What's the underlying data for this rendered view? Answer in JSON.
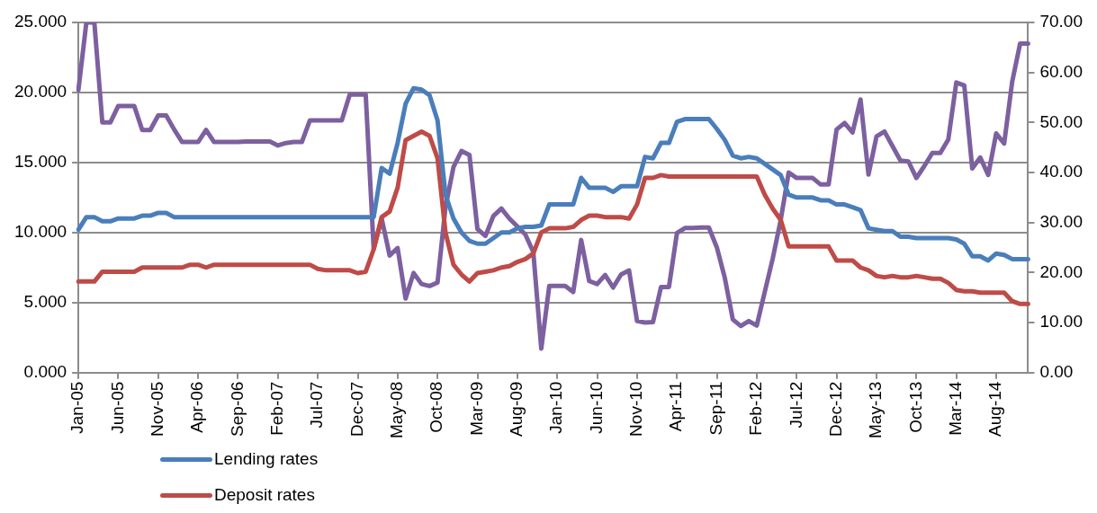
{
  "chart_data": {
    "type": "line",
    "categories": [
      "Jan-05",
      null,
      null,
      null,
      null,
      "Jun-05",
      null,
      null,
      null,
      null,
      "Nov-05",
      null,
      null,
      null,
      null,
      "Apr-06",
      null,
      null,
      null,
      null,
      "Sep-06",
      null,
      null,
      null,
      null,
      "Feb-07",
      null,
      null,
      null,
      null,
      "Jul-07",
      null,
      null,
      null,
      null,
      "Dec-07",
      null,
      null,
      null,
      null,
      "May-08",
      null,
      null,
      null,
      null,
      "Oct-08",
      null,
      null,
      null,
      null,
      "Mar-09",
      null,
      null,
      null,
      null,
      "Aug-09",
      null,
      null,
      null,
      null,
      "Jan-10",
      null,
      null,
      null,
      null,
      "Jun-10",
      null,
      null,
      null,
      null,
      "Nov-10",
      null,
      null,
      null,
      null,
      "Apr-11",
      null,
      null,
      null,
      null,
      "Sep-11",
      null,
      null,
      null,
      null,
      "Feb-12",
      null,
      null,
      null,
      null,
      "Jul-12",
      null,
      null,
      null,
      null,
      "Dec-12",
      null,
      null,
      null,
      null,
      "May-13",
      null,
      null,
      null,
      null,
      "Oct-13",
      null,
      null,
      null,
      null,
      "Mar-14",
      null,
      null,
      null,
      null,
      "Aug-14",
      null,
      null,
      null,
      null
    ],
    "series": [
      {
        "name": "Lending rates",
        "color": "#4a7ebb",
        "values": [
          10.2,
          11.1,
          11.1,
          10.8,
          10.8,
          11.0,
          11.0,
          11.0,
          11.2,
          11.2,
          11.4,
          11.4,
          11.1,
          11.1,
          11.1,
          11.1,
          11.1,
          11.1,
          11.1,
          11.1,
          11.1,
          11.1,
          11.1,
          11.1,
          11.1,
          11.1,
          11.1,
          11.1,
          11.1,
          11.1,
          11.1,
          11.1,
          11.1,
          11.1,
          11.1,
          11.1,
          11.1,
          11.1,
          14.6,
          14.2,
          16.4,
          19.2,
          20.3,
          20.2,
          19.8,
          18.0,
          12.7,
          11.0,
          10.0,
          9.4,
          9.2,
          9.2,
          9.6,
          10.0,
          10.0,
          10.3,
          10.4,
          10.4,
          10.5,
          12.0,
          12.0,
          12.0,
          12.0,
          13.9,
          13.2,
          13.2,
          13.2,
          12.9,
          13.3,
          13.3,
          13.3,
          15.4,
          15.3,
          16.4,
          16.4,
          17.9,
          18.1,
          18.1,
          18.1,
          18.1,
          17.4,
          16.6,
          15.5,
          15.3,
          15.4,
          15.3,
          14.9,
          14.5,
          14.1,
          12.7,
          12.5,
          12.5,
          12.5,
          12.3,
          12.3,
          12.0,
          12.0,
          11.8,
          11.6,
          10.3,
          10.2,
          10.1,
          10.1,
          9.7,
          9.7,
          9.6,
          9.6,
          9.6,
          9.6,
          9.6,
          9.5,
          9.2,
          8.3,
          8.3,
          8.0,
          8.5,
          8.4,
          8.1,
          8.1,
          8.1
        ]
      },
      {
        "name": "Deposit rates",
        "color": "#be4b48",
        "values": [
          6.5,
          6.5,
          6.5,
          7.2,
          7.2,
          7.2,
          7.2,
          7.2,
          7.5,
          7.5,
          7.5,
          7.5,
          7.5,
          7.5,
          7.7,
          7.7,
          7.5,
          7.7,
          7.7,
          7.7,
          7.7,
          7.7,
          7.7,
          7.7,
          7.7,
          7.7,
          7.7,
          7.7,
          7.7,
          7.7,
          7.4,
          7.3,
          7.3,
          7.3,
          7.3,
          7.1,
          7.2,
          8.8,
          11.1,
          11.5,
          13.2,
          16.6,
          16.9,
          17.2,
          16.9,
          15.3,
          10.0,
          7.7,
          7.0,
          6.5,
          7.1,
          7.2,
          7.3,
          7.5,
          7.6,
          7.9,
          8.1,
          8.5,
          10.0,
          10.3,
          10.3,
          10.3,
          10.4,
          10.9,
          11.2,
          11.2,
          11.1,
          11.1,
          11.1,
          11.0,
          12.0,
          13.9,
          13.9,
          14.1,
          14.0,
          14.0,
          14.0,
          14.0,
          14.0,
          14.0,
          14.0,
          14.0,
          14.0,
          14.0,
          14.0,
          14.0,
          12.7,
          11.7,
          10.9,
          9.0,
          9.0,
          9.0,
          9.0,
          9.0,
          9.0,
          8.0,
          8.0,
          8.0,
          7.5,
          7.3,
          6.9,
          6.8,
          6.9,
          6.8,
          6.8,
          6.9,
          6.8,
          6.7,
          6.7,
          6.4,
          5.9,
          5.8,
          5.8,
          5.7,
          5.7,
          5.7,
          5.7,
          5.1,
          4.9,
          4.9
        ]
      },
      {
        "color": "#7d60a0",
        "axis": "y2",
        "values": [
          56.5,
          70,
          70,
          50.0,
          50.0,
          53.3,
          53.3,
          53.3,
          48.5,
          48.5,
          51.4,
          51.4,
          48.6,
          46.1,
          46.1,
          46.1,
          48.5,
          46.1,
          46.1,
          46.1,
          46.1,
          46.2,
          46.2,
          46.2,
          46.2,
          45.4,
          45.9,
          46.1,
          46.1,
          50.4,
          50.4,
          50.4,
          50.4,
          50.4,
          55.6,
          55.6,
          55.6,
          24.7,
          30.8,
          23.4,
          24.9,
          14.8,
          19.9,
          17.7,
          17.3,
          18.0,
          33.1,
          41.1,
          44.3,
          43.5,
          28.7,
          27.3,
          31.3,
          32.8,
          30.8,
          29.2,
          27.6,
          24.1,
          4.8,
          17.3,
          17.3,
          17.3,
          16.1,
          26.5,
          18.3,
          17.7,
          19.5,
          17.0,
          19.6,
          20.4,
          10.3,
          10.0,
          10.1,
          17.1,
          17.1,
          27.9,
          28.9,
          28.9,
          29.0,
          29.0,
          25.0,
          18.9,
          10.6,
          9.3,
          10.3,
          9.4,
          16.1,
          22.8,
          30.5,
          40.0,
          38.9,
          38.9,
          38.9,
          37.6,
          37.6,
          48.6,
          49.9,
          48.0,
          54.6,
          39.6,
          47.2,
          48.2,
          45.3,
          42.4,
          42.2,
          38.9,
          41.3,
          43.9,
          43.9,
          46.6,
          58.0,
          57.4,
          40.8,
          43.0,
          39.5,
          47.8,
          45.8,
          58.1,
          65.8,
          65.8
        ]
      }
    ],
    "ylim": [
      0,
      25
    ],
    "yticks": [
      {
        "value": 0,
        "label": "0.000"
      },
      {
        "value": 5,
        "label": "5.000"
      },
      {
        "value": 10,
        "label": "10.000"
      },
      {
        "value": 15,
        "label": "15.000"
      },
      {
        "value": 20,
        "label": "20.000"
      },
      {
        "value": 25,
        "label": "25.000"
      }
    ],
    "y2lim": [
      0,
      70
    ],
    "y2ticks": [
      {
        "value": 0,
        "label": "0.00"
      },
      {
        "value": 10,
        "label": "10.00"
      },
      {
        "value": 20,
        "label": "20.00"
      },
      {
        "value": 30,
        "label": "30.00"
      },
      {
        "value": 40,
        "label": "40.00"
      },
      {
        "value": 50,
        "label": "50.00"
      },
      {
        "value": 60,
        "label": "60.00"
      },
      {
        "value": 70,
        "label": "70.00"
      }
    ],
    "grid": "y",
    "legend": "bottom",
    "marker": "none",
    "line_style": "solid"
  }
}
